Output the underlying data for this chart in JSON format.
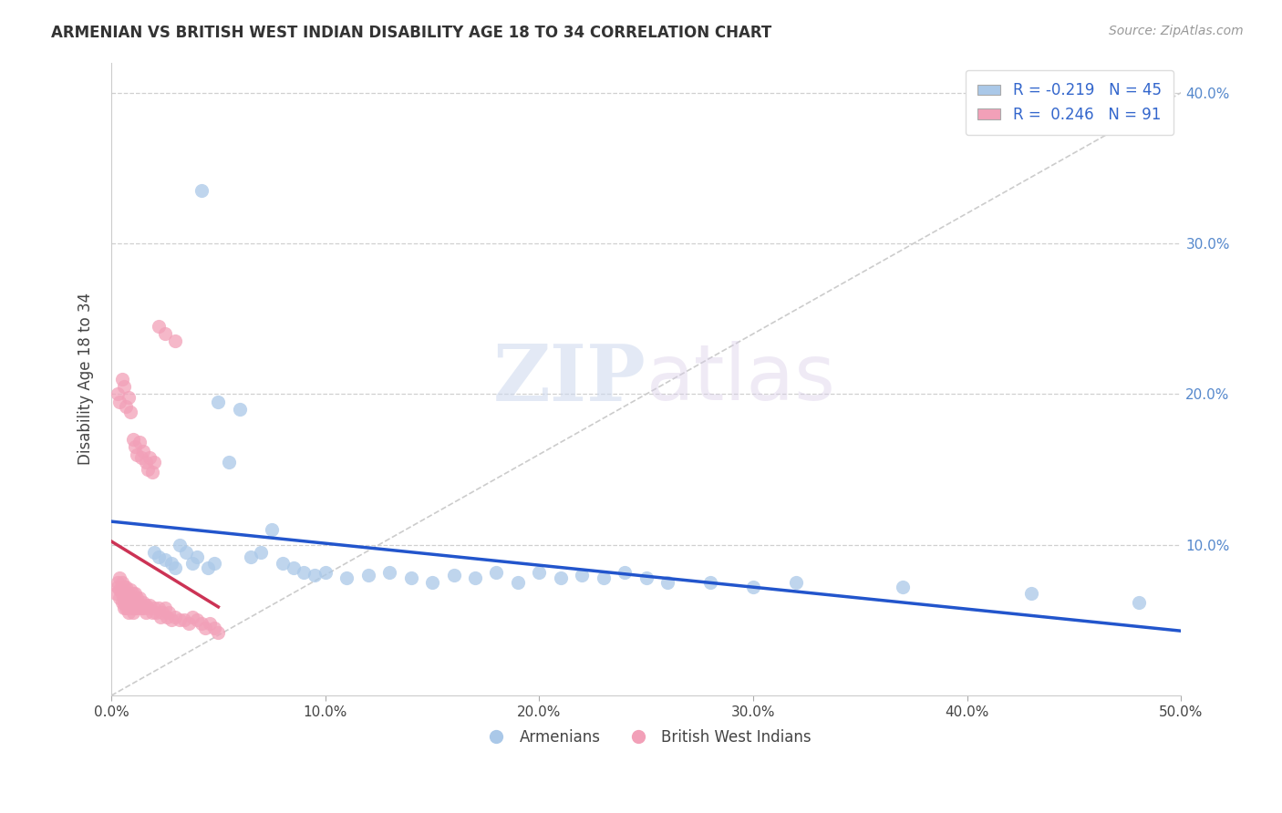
{
  "title": "ARMENIAN VS BRITISH WEST INDIAN DISABILITY AGE 18 TO 34 CORRELATION CHART",
  "source": "Source: ZipAtlas.com",
  "ylabel": "Disability Age 18 to 34",
  "xlim": [
    0.0,
    0.5
  ],
  "ylim": [
    0.0,
    0.42
  ],
  "xticks": [
    0.0,
    0.1,
    0.2,
    0.3,
    0.4,
    0.5
  ],
  "yticks": [
    0.1,
    0.2,
    0.3,
    0.4
  ],
  "xticklabels": [
    "0.0%",
    "10.0%",
    "20.0%",
    "30.0%",
    "40.0%",
    "50.0%"
  ],
  "yticklabels": [
    "10.0%",
    "20.0%",
    "30.0%",
    "40.0%"
  ],
  "armenian_color": "#aac8e8",
  "bwi_color": "#f2a0b8",
  "armenian_line_color": "#2255cc",
  "bwi_line_color": "#cc3355",
  "diagonal_color": "#cccccc",
  "background_color": "#ffffff",
  "armenians_x": [
    0.02,
    0.022,
    0.025,
    0.028,
    0.03,
    0.032,
    0.035,
    0.038,
    0.04,
    0.042,
    0.045,
    0.048,
    0.05,
    0.055,
    0.06,
    0.065,
    0.07,
    0.075,
    0.08,
    0.085,
    0.09,
    0.095,
    0.1,
    0.11,
    0.12,
    0.13,
    0.14,
    0.15,
    0.16,
    0.17,
    0.18,
    0.19,
    0.2,
    0.21,
    0.22,
    0.23,
    0.24,
    0.25,
    0.26,
    0.28,
    0.3,
    0.32,
    0.37,
    0.43,
    0.48
  ],
  "armenians_y": [
    0.095,
    0.092,
    0.09,
    0.088,
    0.085,
    0.1,
    0.095,
    0.088,
    0.092,
    0.335,
    0.085,
    0.088,
    0.195,
    0.155,
    0.19,
    0.092,
    0.095,
    0.11,
    0.088,
    0.085,
    0.082,
    0.08,
    0.082,
    0.078,
    0.08,
    0.082,
    0.078,
    0.075,
    0.08,
    0.078,
    0.082,
    0.075,
    0.082,
    0.078,
    0.08,
    0.078,
    0.082,
    0.078,
    0.075,
    0.075,
    0.072,
    0.075,
    0.072,
    0.068,
    0.062
  ],
  "bwi_x": [
    0.002,
    0.003,
    0.003,
    0.004,
    0.004,
    0.004,
    0.005,
    0.005,
    0.005,
    0.005,
    0.006,
    0.006,
    0.006,
    0.006,
    0.007,
    0.007,
    0.007,
    0.007,
    0.007,
    0.008,
    0.008,
    0.008,
    0.008,
    0.008,
    0.009,
    0.009,
    0.009,
    0.009,
    0.01,
    0.01,
    0.01,
    0.01,
    0.011,
    0.011,
    0.011,
    0.012,
    0.012,
    0.012,
    0.013,
    0.013,
    0.014,
    0.014,
    0.015,
    0.015,
    0.016,
    0.016,
    0.017,
    0.018,
    0.019,
    0.02,
    0.021,
    0.022,
    0.023,
    0.024,
    0.025,
    0.026,
    0.027,
    0.028,
    0.03,
    0.032,
    0.034,
    0.036,
    0.038,
    0.04,
    0.042,
    0.044,
    0.046,
    0.048,
    0.05,
    0.003,
    0.004,
    0.005,
    0.006,
    0.007,
    0.008,
    0.009,
    0.01,
    0.011,
    0.012,
    0.013,
    0.014,
    0.015,
    0.016,
    0.017,
    0.018,
    0.019,
    0.02,
    0.022,
    0.025,
    0.03
  ],
  "bwi_y": [
    0.068,
    0.075,
    0.072,
    0.065,
    0.07,
    0.078,
    0.062,
    0.07,
    0.075,
    0.068,
    0.058,
    0.065,
    0.072,
    0.062,
    0.058,
    0.065,
    0.068,
    0.072,
    0.06,
    0.055,
    0.062,
    0.068,
    0.065,
    0.058,
    0.06,
    0.065,
    0.07,
    0.062,
    0.058,
    0.065,
    0.068,
    0.055,
    0.062,
    0.068,
    0.058,
    0.06,
    0.065,
    0.058,
    0.06,
    0.065,
    0.058,
    0.06,
    0.062,
    0.058,
    0.06,
    0.055,
    0.058,
    0.06,
    0.055,
    0.058,
    0.055,
    0.058,
    0.052,
    0.055,
    0.058,
    0.052,
    0.055,
    0.05,
    0.052,
    0.05,
    0.05,
    0.048,
    0.052,
    0.05,
    0.048,
    0.045,
    0.048,
    0.045,
    0.042,
    0.2,
    0.195,
    0.21,
    0.205,
    0.192,
    0.198,
    0.188,
    0.17,
    0.165,
    0.16,
    0.168,
    0.158,
    0.162,
    0.155,
    0.15,
    0.158,
    0.148,
    0.155,
    0.245,
    0.24,
    0.235
  ]
}
